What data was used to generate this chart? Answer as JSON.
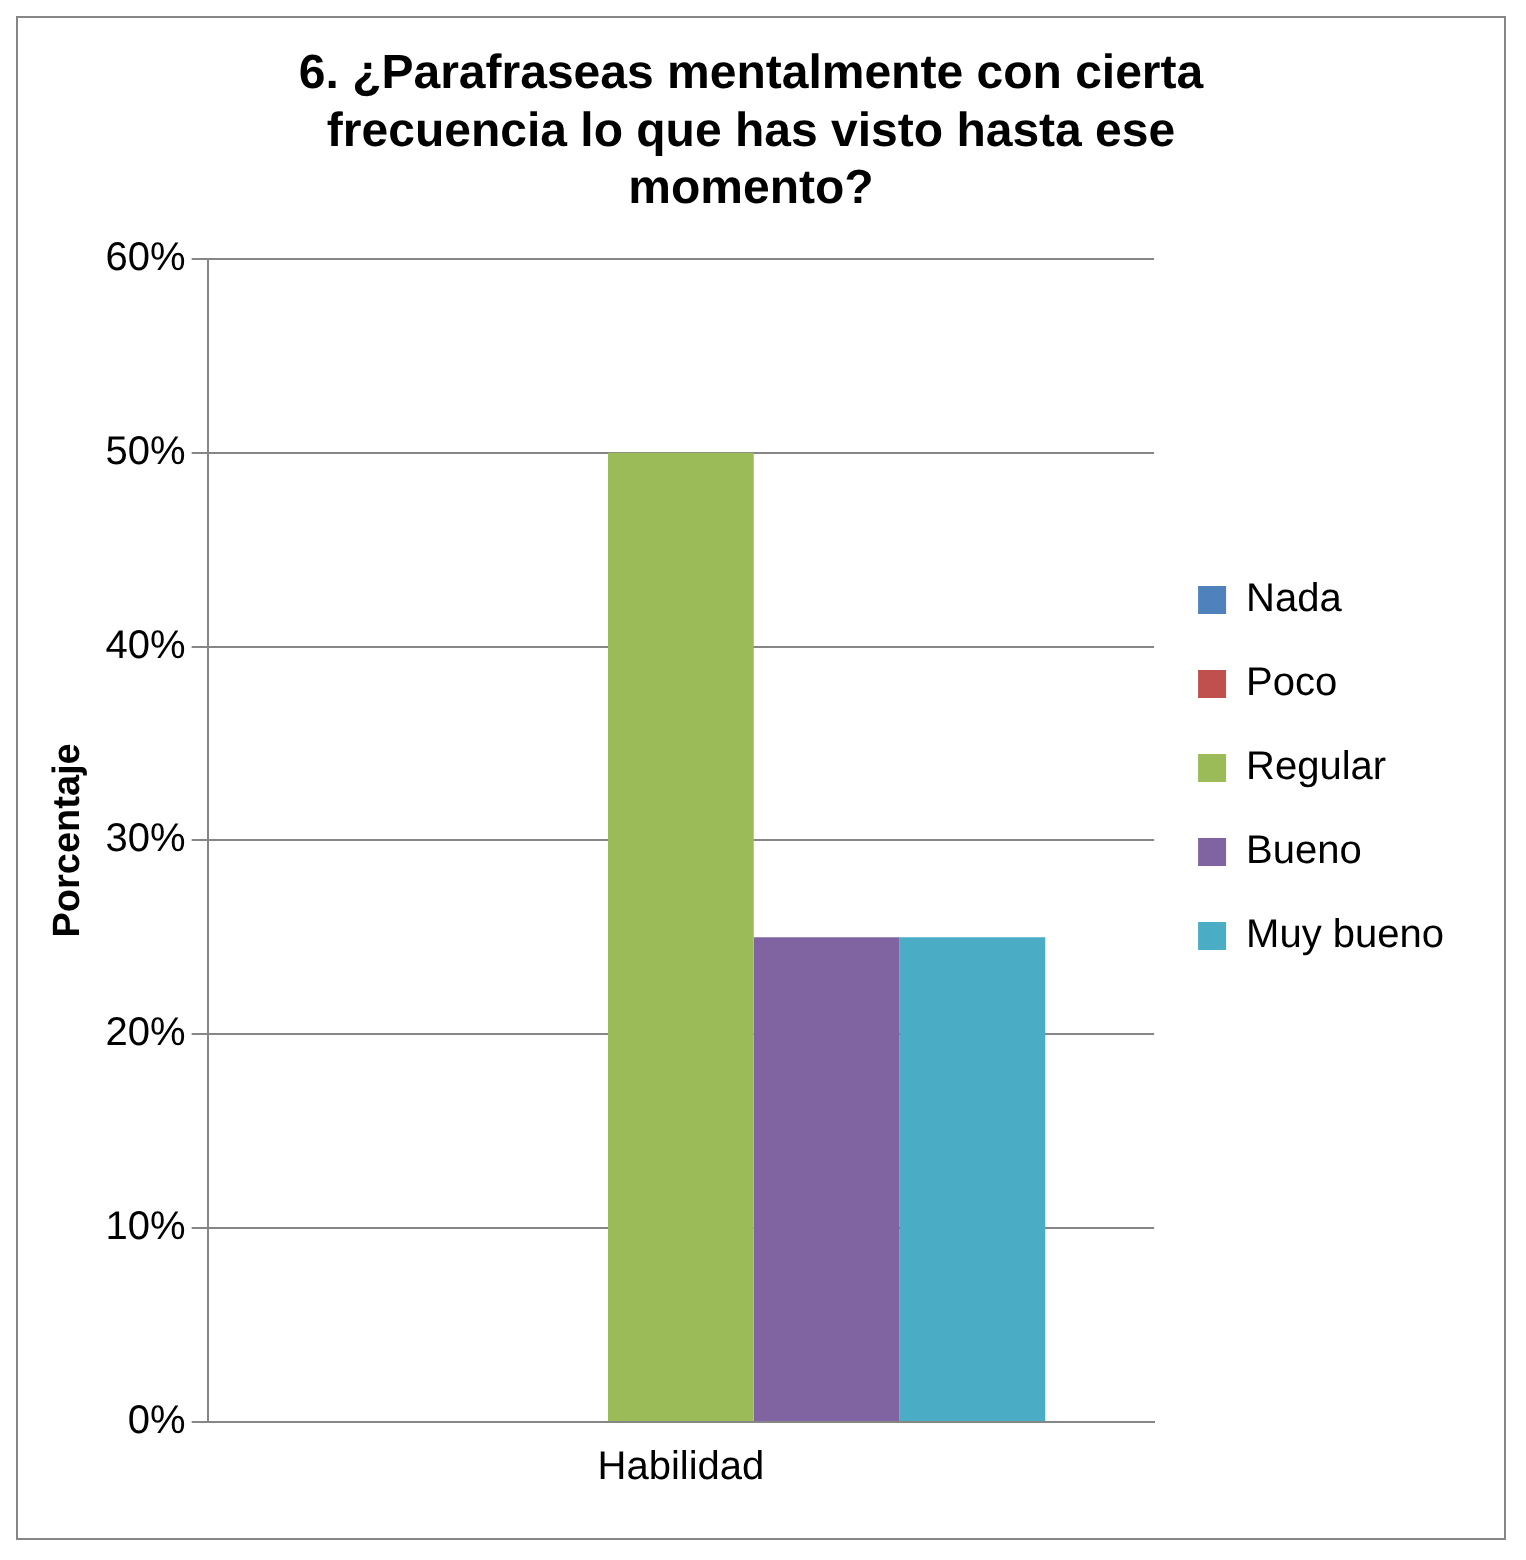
{
  "chart_data": {
    "type": "bar",
    "title": "6. ¿Parafraseas mentalmente con cierta frecuencia lo que has visto hasta ese momento?",
    "ylabel": "Porcentaje",
    "categories": [
      "Habilidad"
    ],
    "series": [
      {
        "name": "Nada",
        "color": "#4f81bd",
        "values": [
          0
        ]
      },
      {
        "name": "Poco",
        "color": "#c0504d",
        "values": [
          0
        ]
      },
      {
        "name": "Regular",
        "color": "#9bbb59",
        "values": [
          50
        ]
      },
      {
        "name": "Bueno",
        "color": "#8064a2",
        "values": [
          25
        ]
      },
      {
        "name": "Muy bueno",
        "color": "#4bacc6",
        "values": [
          25
        ]
      }
    ],
    "ylim": [
      0,
      60
    ],
    "yticks": [
      {
        "value": 0,
        "label": "0%"
      },
      {
        "value": 10,
        "label": "10%"
      },
      {
        "value": 20,
        "label": "20%"
      },
      {
        "value": 30,
        "label": "30%"
      },
      {
        "value": 40,
        "label": "40%"
      },
      {
        "value": 50,
        "label": "50%"
      },
      {
        "value": 60,
        "label": "60%"
      }
    ],
    "grid": "y",
    "legend": "right"
  }
}
